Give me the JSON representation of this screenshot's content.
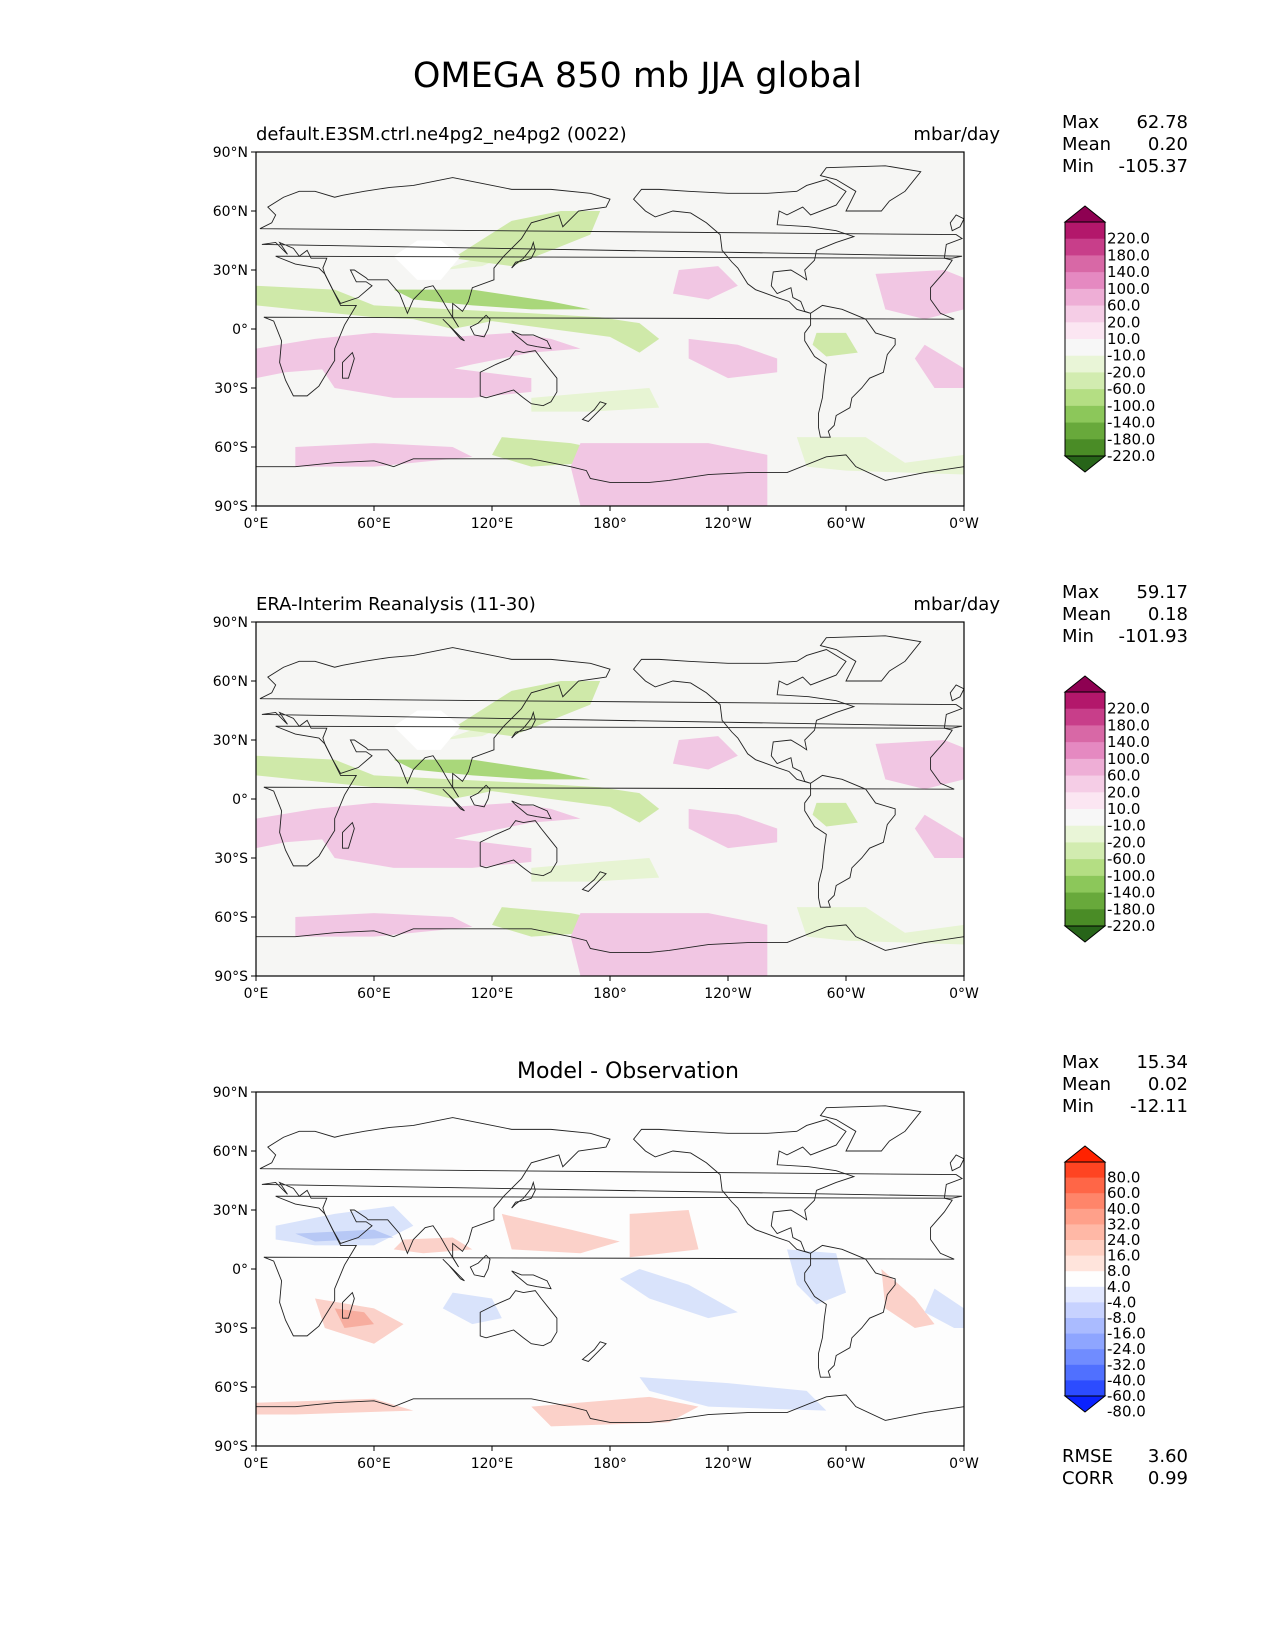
{
  "title": "OMEGA 850 mb JJA global",
  "lat_ticks": [
    "90°N",
    "60°N",
    "30°N",
    "0°",
    "30°S",
    "60°S",
    "90°S"
  ],
  "lon_ticks": [
    "0°E",
    "60°E",
    "120°E",
    "180°",
    "120°W",
    "60°W",
    "0°W"
  ],
  "colors": {
    "pink": "#f1c6e3",
    "pink_light": "#f9e4f1",
    "pink_deep": "#e8a9d3",
    "green": "#cfe9a9",
    "green_light": "#e7f4d3",
    "green_deep": "#a9d77a",
    "red": "#fbd1c9",
    "red_deep": "#f7ad9f",
    "blue": "#d9e3fb",
    "blue_deep": "#b7c8f5",
    "background": "#f6f6f4"
  },
  "panels": [
    {
      "title_left": "default.E3SM.ctrl.ne4pg2_ne4pg2 (0022)",
      "title_right": "mbar/day",
      "title_center": "",
      "stats": {
        "max_label": "Max",
        "max": "62.78",
        "mean_label": "Mean",
        "mean": "0.20",
        "min_label": "Min",
        "min": "-105.37"
      },
      "colorbar": {
        "levels": [
          "220.0",
          "180.0",
          "140.0",
          "100.0",
          "60.0",
          "20.0",
          "10.0",
          "-10.0",
          "-20.0",
          "-60.0",
          "-100.0",
          "-140.0",
          "-180.0",
          "-220.0"
        ],
        "colors": [
          "#8e0152",
          "#b3176b",
          "#c83e8a",
          "#d868a6",
          "#e589c1",
          "#eeaed6",
          "#f5cde6",
          "#fbe6f2",
          "#f7f7f7",
          "#e9f5d7",
          "#d2ecb0",
          "#b4de83",
          "#8cc75a",
          "#68a93b",
          "#4a8c26",
          "#276419"
        ]
      }
    },
    {
      "title_left": "ERA-Interim Reanalysis (11-30)",
      "title_right": "mbar/day",
      "title_center": "",
      "stats": {
        "max_label": "Max",
        "max": "59.17",
        "mean_label": "Mean",
        "mean": "0.18",
        "min_label": "Min",
        "min": "-101.93"
      },
      "colorbar": {
        "levels": [
          "220.0",
          "180.0",
          "140.0",
          "100.0",
          "60.0",
          "20.0",
          "10.0",
          "-10.0",
          "-20.0",
          "-60.0",
          "-100.0",
          "-140.0",
          "-180.0",
          "-220.0"
        ],
        "colors": [
          "#8e0152",
          "#b3176b",
          "#c83e8a",
          "#d868a6",
          "#e589c1",
          "#eeaed6",
          "#f5cde6",
          "#fbe6f2",
          "#f7f7f7",
          "#e9f5d7",
          "#d2ecb0",
          "#b4de83",
          "#8cc75a",
          "#68a93b",
          "#4a8c26",
          "#276419"
        ]
      }
    },
    {
      "title_left": "",
      "title_right": "",
      "title_center": "Model - Observation",
      "stats": {
        "max_label": "Max",
        "max": "15.34",
        "mean_label": "Mean",
        "mean": "0.02",
        "min_label": "Min",
        "min": "-12.11"
      },
      "metrics": {
        "rmse_label": "RMSE",
        "rmse": "3.60",
        "corr_label": "CORR",
        "corr": "0.99"
      },
      "colorbar": {
        "levels": [
          "80.0",
          "60.0",
          "40.0",
          "32.0",
          "24.0",
          "16.0",
          "8.0",
          "4.0",
          "-4.0",
          "-8.0",
          "-16.0",
          "-24.0",
          "-32.0",
          "-40.0",
          "-60.0",
          "-80.0"
        ],
        "colors": [
          "#ff2200",
          "#ff4422",
          "#ff6647",
          "#ff856a",
          "#ffa08a",
          "#ffb8a6",
          "#ffcfc2",
          "#ffe4dc",
          "#fefefe",
          "#e2e8ff",
          "#c7d2ff",
          "#aabbff",
          "#8ea5ff",
          "#708cff",
          "#5070ff",
          "#2c4cff",
          "#0a22ff"
        ]
      }
    }
  ]
}
